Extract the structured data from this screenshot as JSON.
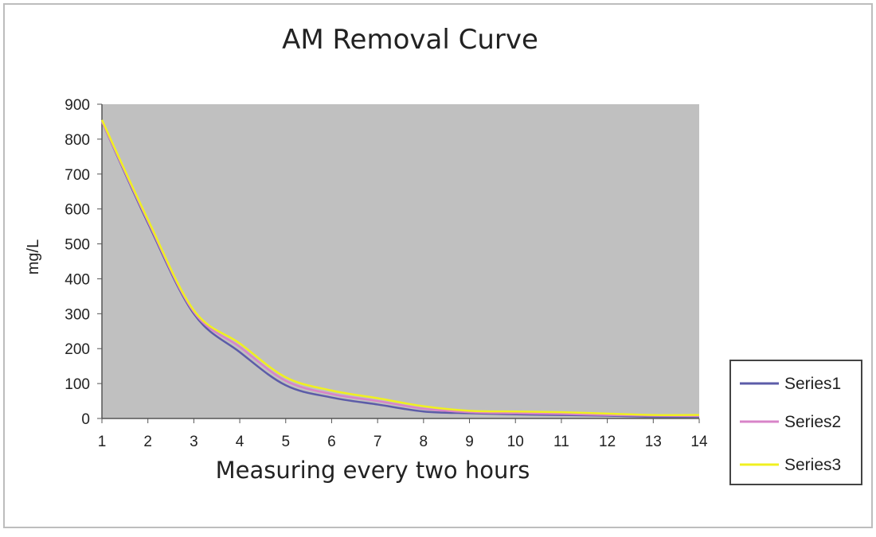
{
  "chart_data": {
    "type": "line",
    "title": "AM Removal Curve",
    "xlabel": "Measuring every two hours",
    "ylabel": "mg/L",
    "x": [
      1,
      2,
      3,
      4,
      5,
      6,
      7,
      8,
      9,
      10,
      11,
      12,
      13,
      14
    ],
    "xlim": [
      1,
      14
    ],
    "ylim": [
      0,
      900
    ],
    "yticks": [
      0,
      100,
      200,
      300,
      400,
      500,
      600,
      700,
      800,
      900
    ],
    "grid": false,
    "legend_position": "right-bottom",
    "plot_background": "#c0c0c0",
    "series": [
      {
        "name": "Series1",
        "color": "#5c5ca8",
        "values": [
          850,
          560,
          300,
          190,
          95,
          60,
          40,
          20,
          15,
          12,
          10,
          8,
          5,
          5
        ]
      },
      {
        "name": "Series2",
        "color": "#d884c8",
        "values": [
          850,
          565,
          305,
          205,
          108,
          70,
          50,
          28,
          18,
          15,
          13,
          10,
          8,
          7
        ]
      },
      {
        "name": "Series3",
        "color": "#f0f020",
        "values": [
          855,
          570,
          310,
          215,
          118,
          80,
          58,
          35,
          22,
          20,
          18,
          14,
          10,
          10
        ]
      }
    ]
  }
}
